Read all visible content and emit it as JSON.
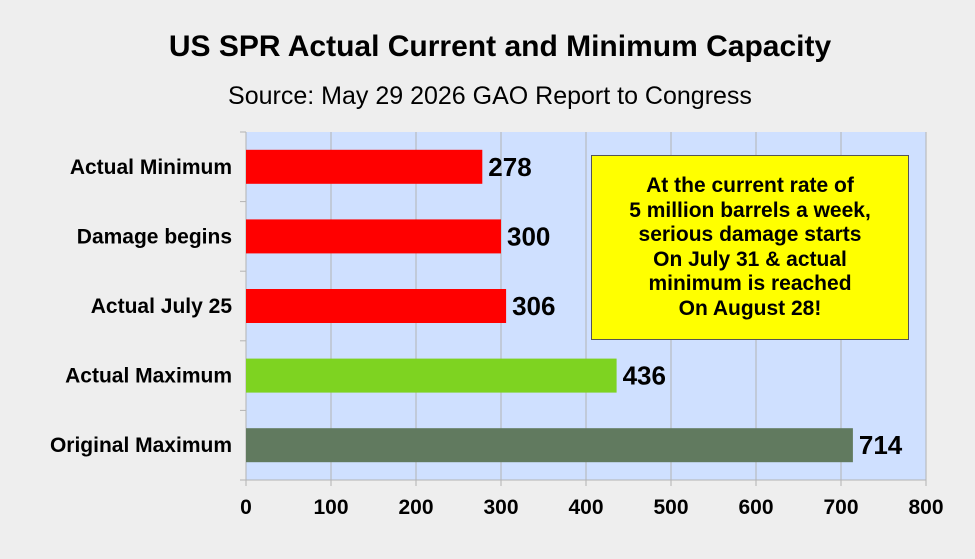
{
  "chart_data": {
    "type": "bar",
    "orientation": "horizontal",
    "title": "US SPR Actual Current and Minimum Capacity",
    "subtitle": "Source: May 29 2026 GAO Report to Congress",
    "categories": [
      "Actual Minimum",
      "Damage begins",
      "Actual July 25",
      "Actual Maximum",
      "Original Maximum"
    ],
    "values": [
      278,
      300,
      306,
      436,
      714
    ],
    "bar_colors": [
      "#ff0000",
      "#ff0000",
      "#ff0000",
      "#7ed321",
      "#617a5f"
    ],
    "xlim": [
      0,
      800
    ],
    "xticks": [
      0,
      100,
      200,
      300,
      400,
      500,
      600,
      700,
      800
    ],
    "grid": "vertical",
    "plot_background": "#cfe0ff",
    "annotation": "At the current rate of\n5 million barrels a week,\nserious damage starts\nOn July 31 & actual\nminimum is reached\nOn August 28!",
    "annotation_background": "#ffff00"
  }
}
